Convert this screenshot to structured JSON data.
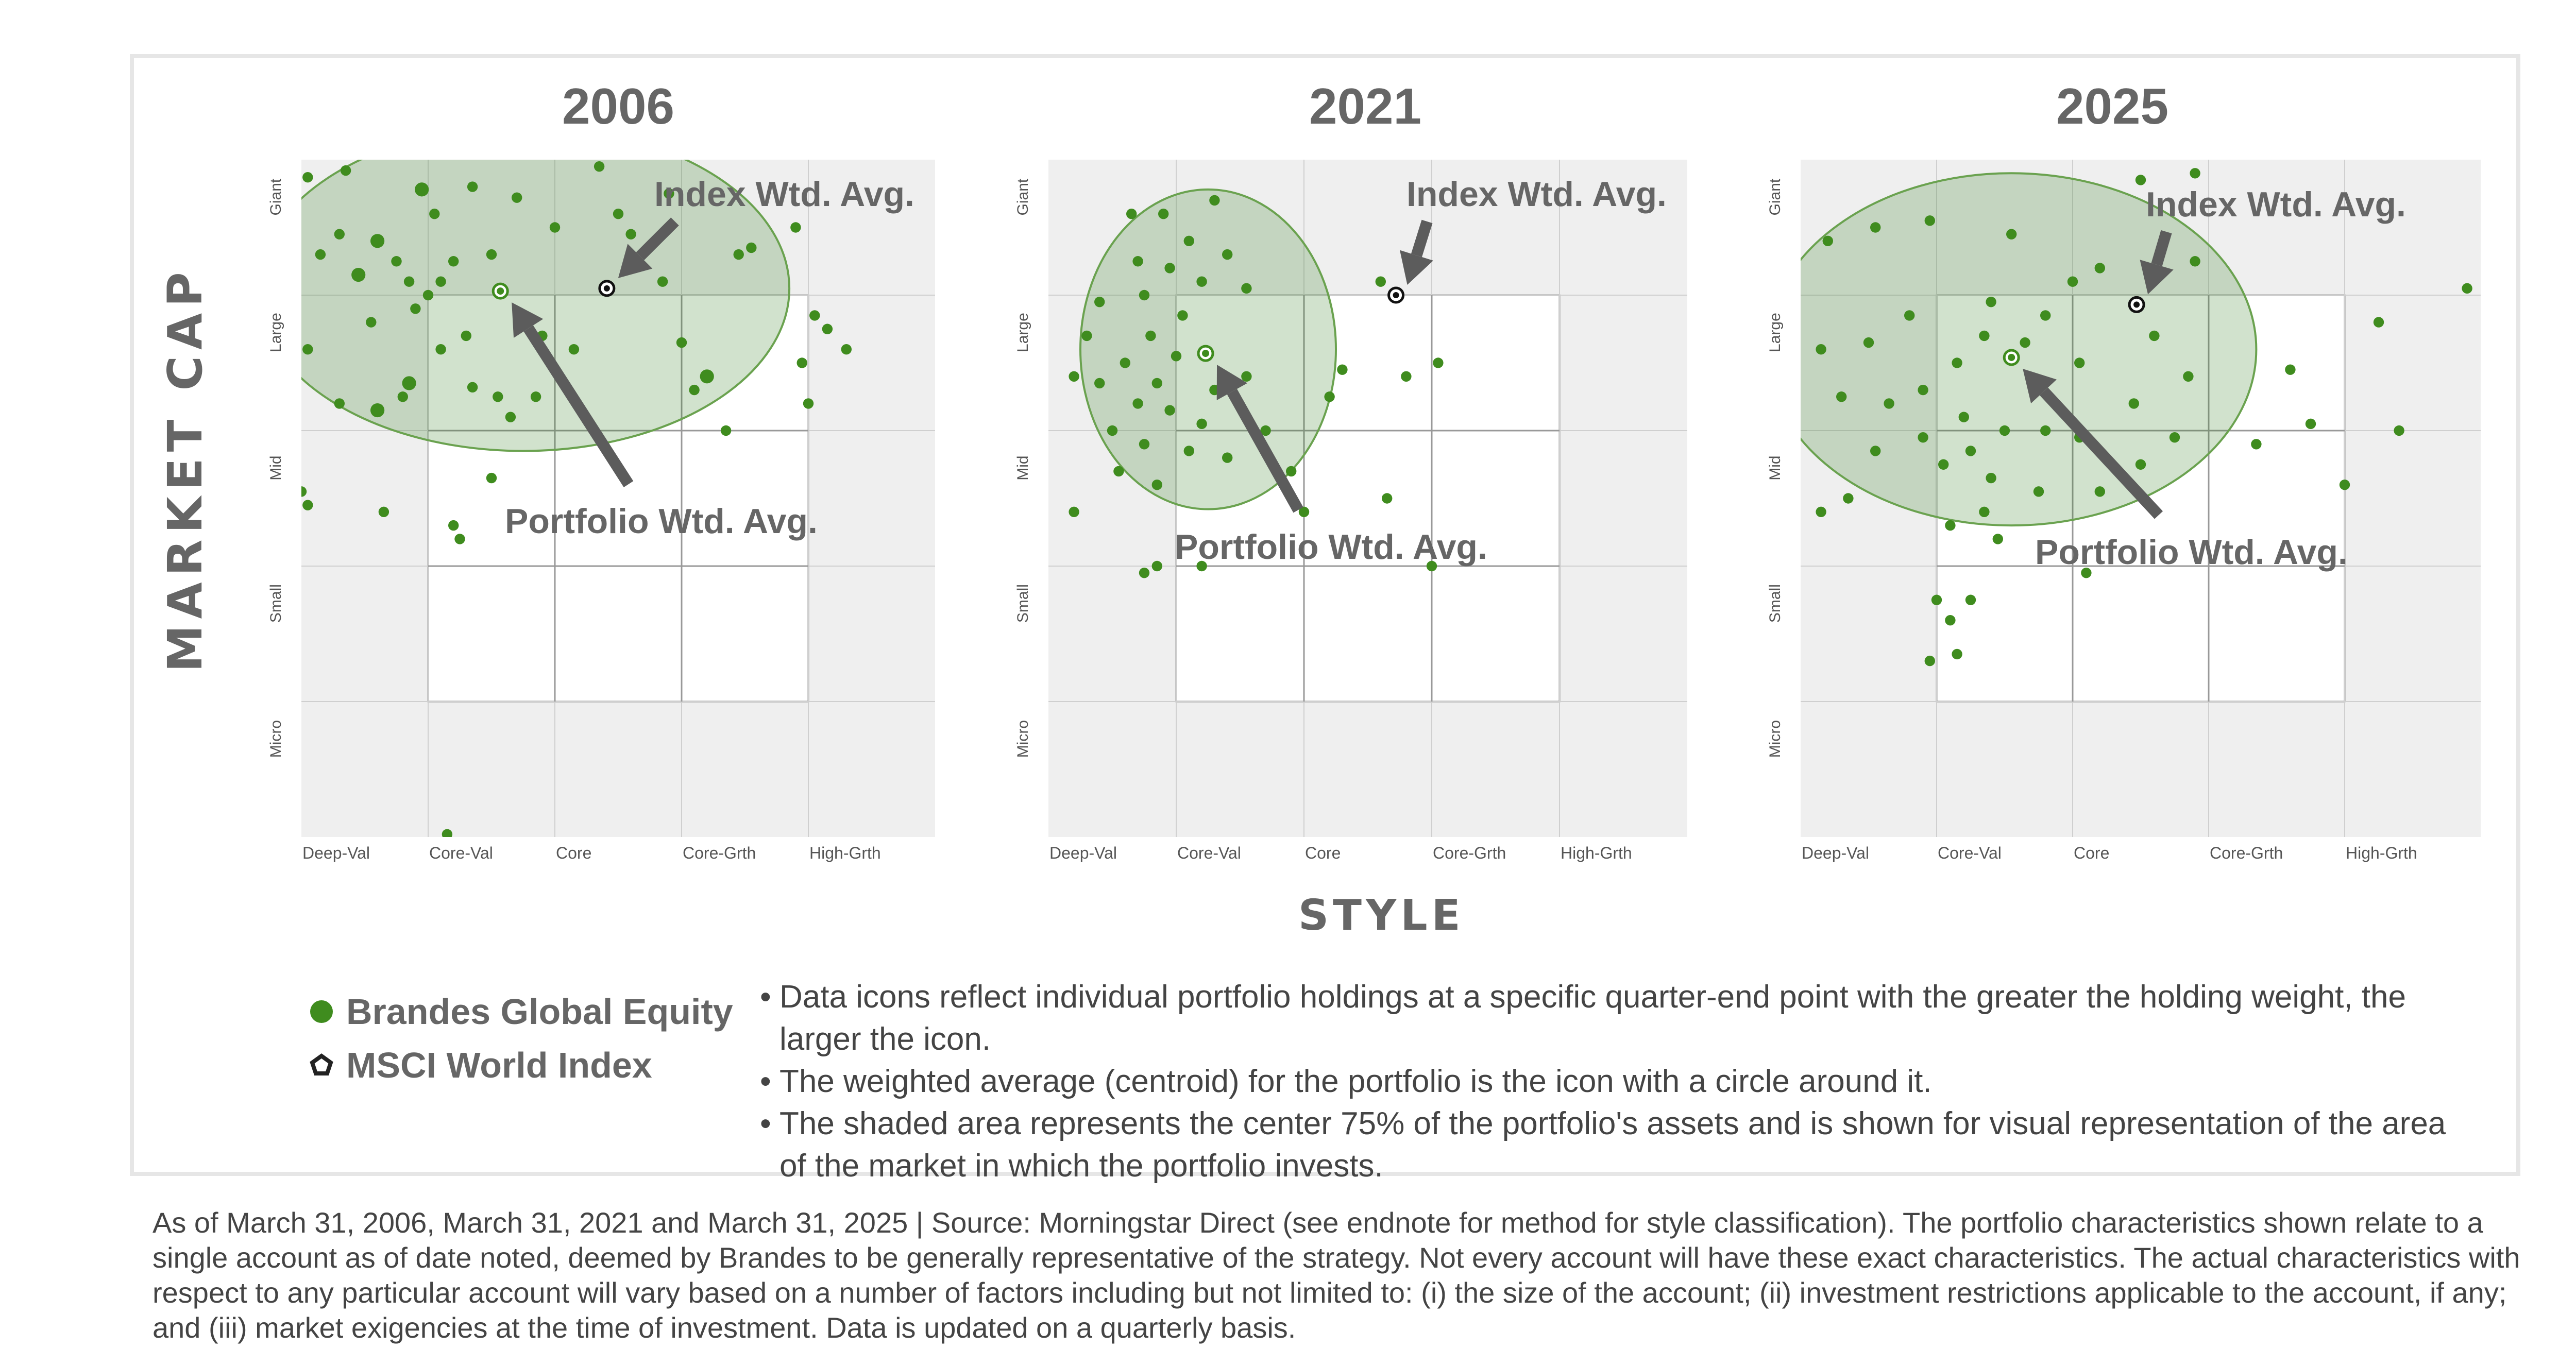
{
  "axis": {
    "y_title": "MARKET CAP",
    "x_title": "STYLE",
    "x_ticks": [
      "Deep-Val",
      "Core-Val",
      "Core",
      "Core-Grth",
      "High-Grth"
    ],
    "y_ticks": [
      "Giant",
      "Large",
      "Mid",
      "Small",
      "Micro"
    ]
  },
  "annotations": {
    "index": "Index Wtd. Avg.",
    "portfolio": "Portfolio Wtd. Avg."
  },
  "colors": {
    "holding": "#3f8c1e",
    "ellipse_fill": "#2e7d1b",
    "ellipse_stroke": "#6aa24f",
    "arrow": "#5c5c5c",
    "bg": "#efefef"
  },
  "chart_data": [
    {
      "type": "scatter",
      "title": "2006",
      "x_range": [
        0,
        5
      ],
      "y_range": [
        0,
        5
      ],
      "portfolio_wtd_avg": {
        "x": 1.57,
        "y": 4.03
      },
      "index_wtd_avg": {
        "x": 2.41,
        "y": 4.05
      },
      "region_75pct": {
        "cx": 1.75,
        "cy": 4.05,
        "rx": 2.1,
        "ry": 1.2
      },
      "holdings": [
        [
          0.05,
          4.87,
          3
        ],
        [
          0.35,
          4.92,
          3
        ],
        [
          0.95,
          4.78,
          4
        ],
        [
          1.35,
          4.8,
          3
        ],
        [
          1.7,
          4.72,
          3
        ],
        [
          2.35,
          4.95,
          3
        ],
        [
          1.05,
          4.6,
          3
        ],
        [
          0.3,
          4.45,
          3
        ],
        [
          0.6,
          4.4,
          4
        ],
        [
          0.75,
          4.25,
          3
        ],
        [
          0.45,
          4.15,
          4
        ],
        [
          0.85,
          4.1,
          3
        ],
        [
          1.2,
          4.25,
          3
        ],
        [
          1.5,
          4.3,
          3
        ],
        [
          1.0,
          4.0,
          3
        ],
        [
          0.15,
          4.3,
          3
        ],
        [
          0.05,
          3.6,
          3
        ],
        [
          0.3,
          3.2,
          3
        ],
        [
          0.8,
          3.25,
          3
        ],
        [
          0.85,
          3.35,
          4
        ],
        [
          0.55,
          3.8,
          3
        ],
        [
          0.6,
          3.15,
          4
        ],
        [
          1.1,
          3.6,
          3
        ],
        [
          1.35,
          3.32,
          3
        ],
        [
          1.65,
          3.1,
          3
        ],
        [
          1.55,
          3.25,
          3
        ],
        [
          1.85,
          3.25,
          3
        ],
        [
          1.9,
          3.7,
          3
        ],
        [
          2.15,
          3.6,
          3
        ],
        [
          2.5,
          4.6,
          3
        ],
        [
          2.6,
          4.45,
          3
        ],
        [
          2.85,
          4.1,
          3
        ],
        [
          3.0,
          3.65,
          3
        ],
        [
          3.1,
          3.3,
          3
        ],
        [
          3.2,
          3.4,
          4
        ],
        [
          3.35,
          3.0,
          3
        ],
        [
          3.45,
          4.3,
          3
        ],
        [
          3.55,
          4.35,
          3
        ],
        [
          3.95,
          3.5,
          3
        ],
        [
          4.0,
          3.2,
          3
        ],
        [
          4.15,
          3.75,
          3
        ],
        [
          4.3,
          3.6,
          3
        ],
        [
          4.05,
          3.85,
          3
        ],
        [
          3.9,
          4.5,
          3
        ],
        [
          2.9,
          4.75,
          3
        ],
        [
          0.0,
          2.55,
          3
        ],
        [
          0.05,
          2.45,
          3
        ],
        [
          0.65,
          2.4,
          3
        ],
        [
          1.2,
          2.3,
          3
        ],
        [
          1.25,
          2.2,
          3
        ],
        [
          1.5,
          2.65,
          3
        ],
        [
          1.1,
          4.1,
          3
        ],
        [
          1.15,
          0.02,
          3
        ],
        [
          0.9,
          3.9,
          3
        ],
        [
          2.0,
          4.5,
          3
        ],
        [
          1.3,
          3.7,
          3
        ]
      ]
    },
    {
      "type": "scatter",
      "title": "2021",
      "x_range": [
        0,
        5
      ],
      "y_range": [
        0,
        5
      ],
      "portfolio_wtd_avg": {
        "x": 1.23,
        "y": 3.57
      },
      "index_wtd_avg": {
        "x": 2.72,
        "y": 4.0
      },
      "region_75pct": {
        "cx": 1.25,
        "cy": 3.6,
        "rx": 1.0,
        "ry": 1.18
      },
      "holdings": [
        [
          0.65,
          4.6,
          3
        ],
        [
          0.9,
          4.6,
          3
        ],
        [
          1.1,
          4.4,
          3
        ],
        [
          1.4,
          4.3,
          3
        ],
        [
          1.55,
          4.05,
          3
        ],
        [
          0.7,
          4.25,
          3
        ],
        [
          0.95,
          4.2,
          3
        ],
        [
          1.2,
          4.1,
          3
        ],
        [
          0.4,
          3.95,
          3
        ],
        [
          0.75,
          4.0,
          3
        ],
        [
          1.05,
          3.85,
          3
        ],
        [
          0.8,
          3.7,
          3
        ],
        [
          1.0,
          3.55,
          3
        ],
        [
          0.6,
          3.5,
          3
        ],
        [
          0.4,
          3.35,
          3
        ],
        [
          0.85,
          3.35,
          3
        ],
        [
          1.3,
          3.3,
          3
        ],
        [
          1.55,
          3.4,
          3
        ],
        [
          0.7,
          3.2,
          3
        ],
        [
          0.95,
          3.15,
          3
        ],
        [
          1.2,
          3.05,
          3
        ],
        [
          0.5,
          3.0,
          3
        ],
        [
          0.75,
          2.9,
          3
        ],
        [
          1.1,
          2.85,
          3
        ],
        [
          1.4,
          2.8,
          3
        ],
        [
          0.55,
          2.7,
          3
        ],
        [
          0.85,
          2.6,
          3
        ],
        [
          1.7,
          3.0,
          3
        ],
        [
          1.9,
          2.7,
          3
        ],
        [
          2.2,
          3.25,
          3
        ],
        [
          2.3,
          3.45,
          3
        ],
        [
          0.3,
          3.7,
          3
        ],
        [
          0.2,
          3.4,
          3
        ],
        [
          0.2,
          2.4,
          3
        ],
        [
          0.85,
          2.0,
          3
        ],
        [
          0.75,
          1.95,
          3
        ],
        [
          1.2,
          2.0,
          3
        ],
        [
          2.0,
          2.4,
          3
        ],
        [
          2.65,
          2.5,
          3
        ],
        [
          3.05,
          3.5,
          3
        ],
        [
          2.8,
          3.4,
          3
        ],
        [
          3.0,
          2.0,
          3
        ],
        [
          1.3,
          4.7,
          3
        ],
        [
          2.6,
          4.1,
          3
        ]
      ]
    },
    {
      "type": "scatter",
      "title": "2025",
      "x_range": [
        0,
        5
      ],
      "y_range": [
        0,
        5
      ],
      "portfolio_wtd_avg": {
        "x": 1.55,
        "y": 3.54
      },
      "index_wtd_avg": {
        "x": 2.47,
        "y": 3.93
      },
      "region_75pct": {
        "cx": 1.55,
        "cy": 3.6,
        "rx": 1.8,
        "ry": 1.3
      },
      "holdings": [
        [
          0.2,
          4.4,
          3
        ],
        [
          0.55,
          4.5,
          3
        ],
        [
          0.95,
          4.55,
          3
        ],
        [
          1.55,
          4.45,
          3
        ],
        [
          2.0,
          4.1,
          3
        ],
        [
          1.8,
          3.85,
          3
        ],
        [
          2.2,
          4.2,
          3
        ],
        [
          2.9,
          4.25,
          3
        ],
        [
          1.4,
          3.95,
          3
        ],
        [
          0.8,
          3.85,
          3
        ],
        [
          0.5,
          3.65,
          3
        ],
        [
          0.15,
          3.6,
          3
        ],
        [
          1.15,
          3.5,
          3
        ],
        [
          1.35,
          3.7,
          3
        ],
        [
          1.65,
          3.65,
          3
        ],
        [
          2.05,
          3.5,
          3
        ],
        [
          2.6,
          3.7,
          3
        ],
        [
          2.85,
          3.4,
          3
        ],
        [
          0.3,
          3.25,
          3
        ],
        [
          0.65,
          3.2,
          3
        ],
        [
          0.9,
          3.3,
          3
        ],
        [
          1.2,
          3.1,
          3
        ],
        [
          1.5,
          3.0,
          3
        ],
        [
          1.8,
          3.0,
          3
        ],
        [
          2.05,
          2.95,
          3
        ],
        [
          2.45,
          3.2,
          3
        ],
        [
          2.75,
          2.95,
          3
        ],
        [
          0.9,
          2.95,
          3
        ],
        [
          0.55,
          2.85,
          3
        ],
        [
          1.05,
          2.75,
          3
        ],
        [
          1.4,
          2.65,
          3
        ],
        [
          1.75,
          2.55,
          3
        ],
        [
          2.2,
          2.55,
          3
        ],
        [
          2.5,
          2.75,
          3
        ],
        [
          1.35,
          2.4,
          3
        ],
        [
          0.15,
          2.4,
          3
        ],
        [
          0.35,
          2.5,
          3
        ],
        [
          1.1,
          2.3,
          3
        ],
        [
          1.45,
          2.2,
          3
        ],
        [
          3.6,
          3.45,
          3
        ],
        [
          3.75,
          3.05,
          3
        ],
        [
          3.35,
          2.9,
          3
        ],
        [
          4.25,
          3.8,
          3
        ],
        [
          4.0,
          2.6,
          3
        ],
        [
          4.4,
          3.0,
          3
        ],
        [
          2.1,
          1.95,
          3
        ],
        [
          1.1,
          1.6,
          3
        ],
        [
          1.15,
          1.35,
          3
        ],
        [
          1.0,
          1.75,
          3
        ],
        [
          1.25,
          1.75,
          3
        ],
        [
          0.95,
          1.3,
          3
        ],
        [
          4.9,
          4.05,
          3
        ],
        [
          1.25,
          2.85,
          3
        ],
        [
          2.5,
          4.85,
          3
        ],
        [
          2.9,
          4.9,
          3
        ]
      ]
    }
  ],
  "legend": [
    {
      "label": "Brandes Global Equity",
      "icon": "filled-circle"
    },
    {
      "label": "MSCI World Index",
      "icon": "pentagon"
    }
  ],
  "notes": [
    "Data icons reflect individual portfolio holdings at a specific quarter-end point with the greater the holding weight, the larger the icon.",
    "The weighted average (centroid) for the portfolio is the icon with a circle around it.",
    "The shaded area represents the center 75% of the portfolio's assets and is shown for visual representation of the area of the market in which the portfolio invests."
  ],
  "footnote": "As of March 31, 2006, March 31, 2021 and March 31, 2025 | Source: Morningstar Direct (see endnote for method for style classification). The portfolio characteristics shown relate to a single account as of date noted, deemed by Brandes to be generally representative of the strategy. Not every account will have these exact characteristics. The actual characteristics with respect to any particular account will vary based on a number of factors including but not limited to: (i) the size of the account; (ii) investment restrictions applicable to the account, if any; and (iii) market exigencies at the time of investment. Data is updated on a quarterly basis."
}
